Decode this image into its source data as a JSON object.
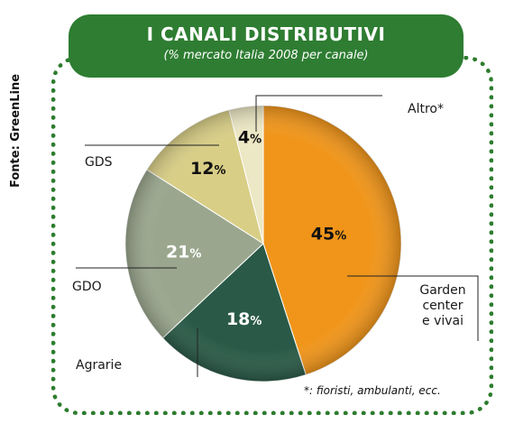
{
  "header": {
    "title": "I CANALI DISTRIBUTIVI",
    "subtitle": "(% mercato Italia 2008 per canale)"
  },
  "source": "Fonte: GreenLine",
  "footnote": "*: fioristi, ambulanti, ecc.",
  "chart_data": {
    "type": "pie",
    "title": "I CANALI DISTRIBUTIVI",
    "subtitle": "(% mercato Italia 2008 per canale)",
    "categories": [
      "Garden center e vivai",
      "Agrarie",
      "GDO",
      "GDS",
      "Altro*"
    ],
    "values": [
      45,
      18,
      21,
      12,
      4
    ],
    "unit": "%",
    "colors": [
      "#f0951a",
      "#2a5a47",
      "#9aa78e",
      "#d8ce86",
      "#ece7c4"
    ],
    "label_colors": [
      "#111111",
      "#ffffff",
      "#ffffff",
      "#111111",
      "#111111"
    ],
    "category_lines": [
      [
        "Garden",
        "center",
        "e vivai"
      ],
      [
        "Agrarie"
      ],
      [
        "GDO"
      ],
      [
        "GDS"
      ],
      [
        "Altro*"
      ]
    ]
  }
}
